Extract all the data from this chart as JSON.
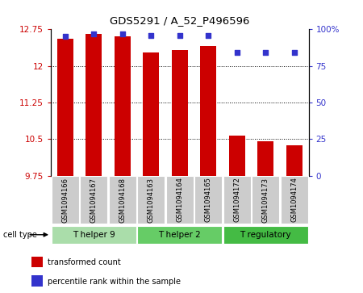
{
  "title": "GDS5291 / A_52_P496596",
  "samples": [
    "GSM1094166",
    "GSM1094167",
    "GSM1094168",
    "GSM1094163",
    "GSM1094164",
    "GSM1094165",
    "GSM1094172",
    "GSM1094173",
    "GSM1094174"
  ],
  "transformed_counts": [
    12.55,
    12.65,
    12.6,
    12.28,
    12.33,
    12.4,
    10.58,
    10.45,
    10.38
  ],
  "percentile_ranks": [
    95,
    97,
    97,
    96,
    96,
    96,
    84,
    84,
    84
  ],
  "ylim_left": [
    9.75,
    12.75
  ],
  "ylim_right": [
    0,
    100
  ],
  "yticks_left": [
    9.75,
    10.5,
    11.25,
    12.0,
    12.75
  ],
  "ytick_labels_left": [
    "9.75",
    "10.5",
    "11.25",
    "12",
    "12.75"
  ],
  "yticks_right": [
    0,
    25,
    50,
    75,
    100
  ],
  "ytick_labels_right": [
    "0",
    "25",
    "50",
    "75",
    "100%"
  ],
  "bar_color": "#CC0000",
  "dot_color": "#3333CC",
  "bar_width": 0.55,
  "groups": [
    {
      "label": "T helper 9",
      "indices": [
        0,
        1,
        2
      ],
      "color": "#AADDAA"
    },
    {
      "label": "T helper 2",
      "indices": [
        3,
        4,
        5
      ],
      "color": "#66CC66"
    },
    {
      "label": "T regulatory",
      "indices": [
        6,
        7,
        8
      ],
      "color": "#44BB44"
    }
  ],
  "group_label": "cell type",
  "legend_items": [
    {
      "label": "transformed count",
      "color": "#CC0000"
    },
    {
      "label": "percentile rank within the sample",
      "color": "#3333CC"
    }
  ],
  "grid_color": "black",
  "tick_area_color": "#CCCCCC",
  "dot_size": 25,
  "fig_width": 4.5,
  "fig_height": 3.63,
  "dpi": 100
}
